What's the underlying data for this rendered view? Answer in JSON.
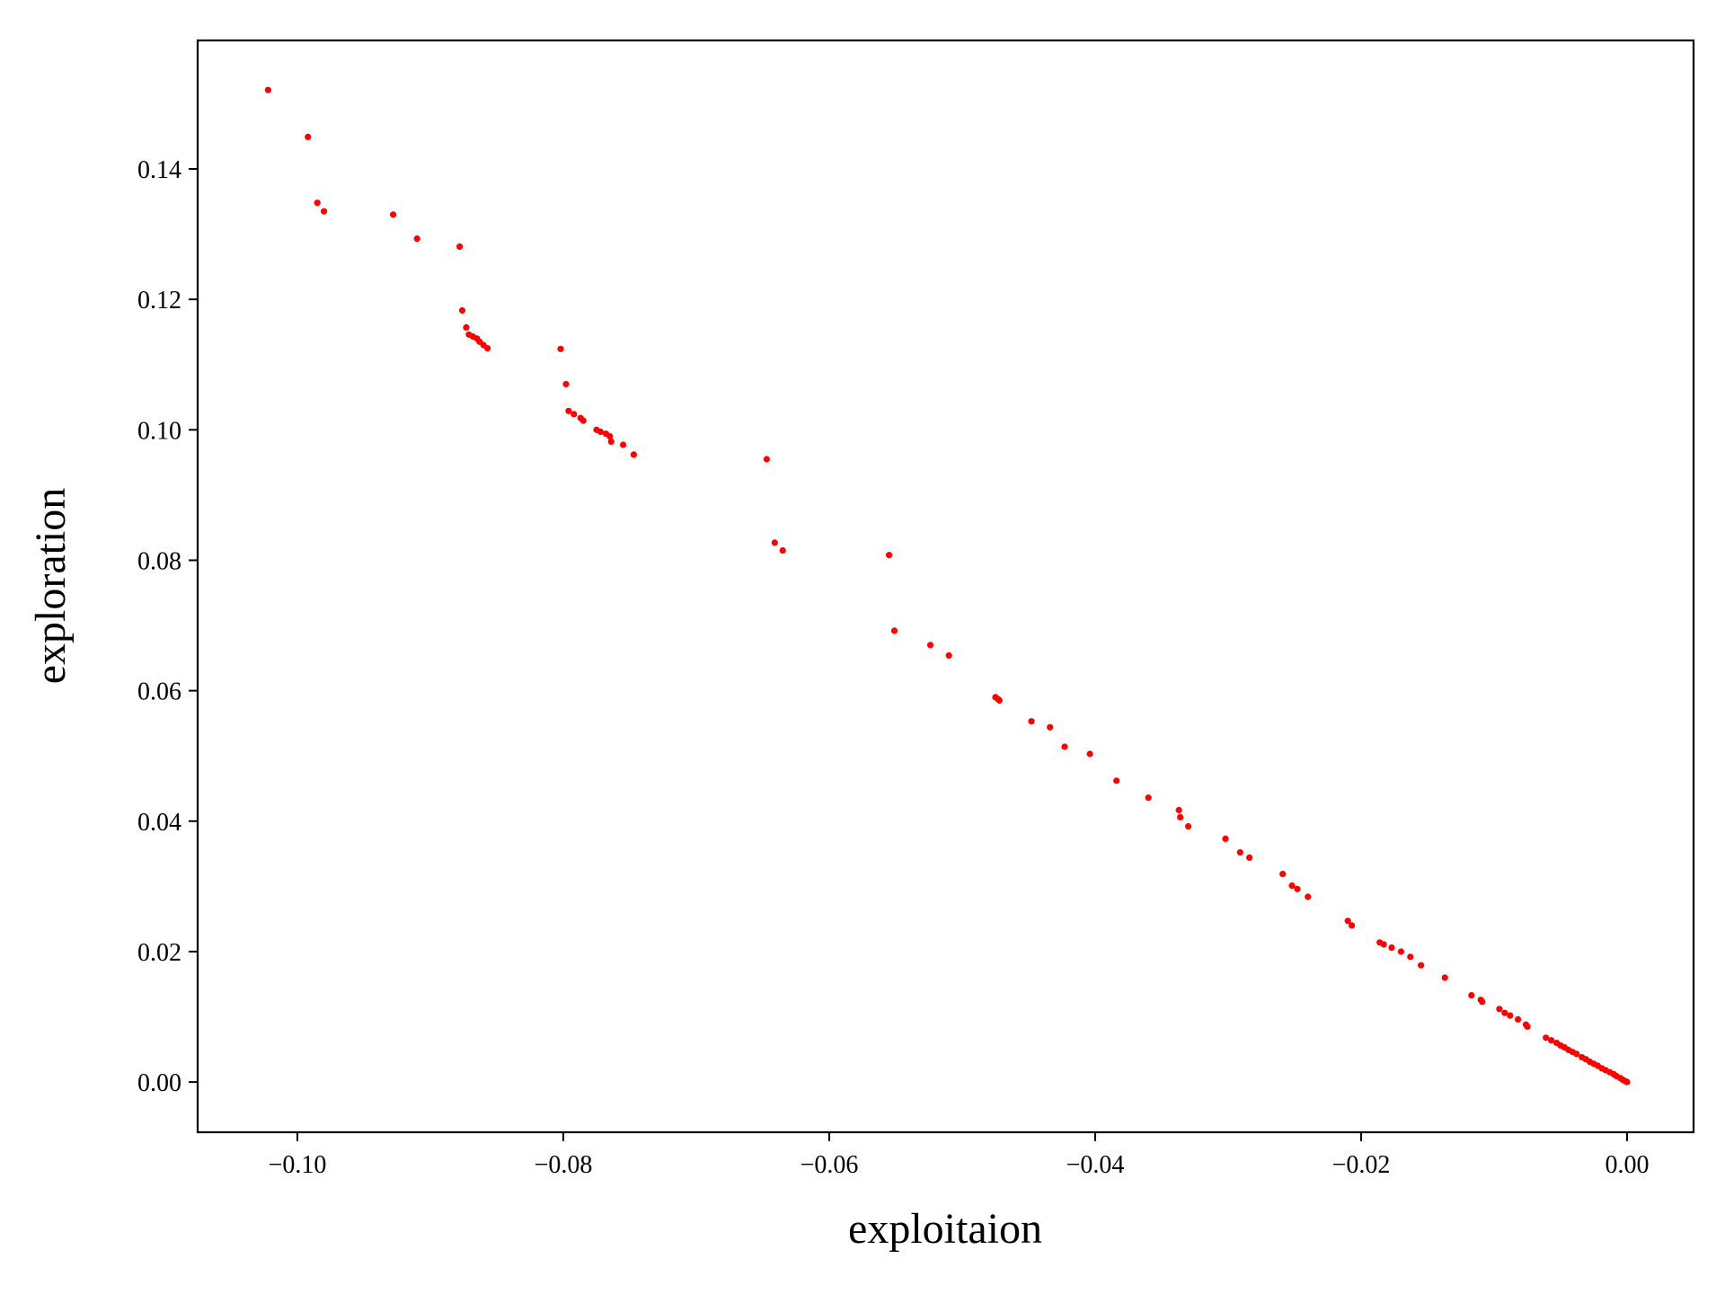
{
  "chart_data": {
    "type": "scatter",
    "title": "",
    "xlabel": "exploitaion",
    "ylabel": "exploration",
    "xlim": [
      -0.1075,
      0.005
    ],
    "ylim": [
      -0.0077,
      0.1597
    ],
    "xticks": [
      -0.1,
      -0.08,
      -0.06,
      -0.04,
      -0.02,
      0.0
    ],
    "xtick_labels": [
      "−0.10",
      "−0.08",
      "−0.06",
      "−0.04",
      "−0.02",
      "0.00"
    ],
    "yticks": [
      0.0,
      0.02,
      0.04,
      0.06,
      0.08,
      0.1,
      0.12,
      0.14
    ],
    "ytick_labels": [
      "0.00",
      "0.02",
      "0.04",
      "0.06",
      "0.08",
      "0.10",
      "0.12",
      "0.14"
    ],
    "grid": false,
    "marker_color": "#ff0000",
    "points": [
      [
        -0.1022,
        0.1521
      ],
      [
        -0.0992,
        0.1449
      ],
      [
        -0.0985,
        0.1348
      ],
      [
        -0.098,
        0.1335
      ],
      [
        -0.0928,
        0.133
      ],
      [
        -0.091,
        0.1293
      ],
      [
        -0.0878,
        0.1281
      ],
      [
        -0.0876,
        0.1183
      ],
      [
        -0.0873,
        0.1157
      ],
      [
        -0.0871,
        0.1146
      ],
      [
        -0.0868,
        0.1143
      ],
      [
        -0.0865,
        0.114
      ],
      [
        -0.0863,
        0.1135
      ],
      [
        -0.086,
        0.113
      ],
      [
        -0.0857,
        0.1125
      ],
      [
        -0.0802,
        0.1124
      ],
      [
        -0.0798,
        0.107
      ],
      [
        -0.0796,
        0.1029
      ],
      [
        -0.0792,
        0.1024
      ],
      [
        -0.0787,
        0.1018
      ],
      [
        -0.0785,
        0.1014
      ],
      [
        -0.0775,
        0.1
      ],
      [
        -0.0772,
        0.0997
      ],
      [
        -0.0768,
        0.0994
      ],
      [
        -0.0765,
        0.099
      ],
      [
        -0.0764,
        0.0982
      ],
      [
        -0.0755,
        0.0977
      ],
      [
        -0.0747,
        0.0962
      ],
      [
        -0.0647,
        0.0955
      ],
      [
        -0.0641,
        0.0827
      ],
      [
        -0.0635,
        0.0815
      ],
      [
        -0.0555,
        0.0808
      ],
      [
        -0.0551,
        0.0692
      ],
      [
        -0.0524,
        0.067
      ],
      [
        -0.051,
        0.0654
      ],
      [
        -0.0475,
        0.059
      ],
      [
        -0.0473,
        0.0587
      ],
      [
        -0.0472,
        0.0585
      ],
      [
        -0.0448,
        0.0553
      ],
      [
        -0.0434,
        0.0544
      ],
      [
        -0.0423,
        0.0514
      ],
      [
        -0.0404,
        0.0503
      ],
      [
        -0.0384,
        0.0462
      ],
      [
        -0.036,
        0.0436
      ],
      [
        -0.0337,
        0.0417
      ],
      [
        -0.0336,
        0.0406
      ],
      [
        -0.033,
        0.0392
      ],
      [
        -0.0302,
        0.0373
      ],
      [
        -0.0291,
        0.0352
      ],
      [
        -0.0284,
        0.0344
      ],
      [
        -0.0259,
        0.0319
      ],
      [
        -0.0252,
        0.0301
      ],
      [
        -0.0248,
        0.0296
      ],
      [
        -0.024,
        0.0284
      ],
      [
        -0.021,
        0.0247
      ],
      [
        -0.0207,
        0.024
      ],
      [
        -0.0186,
        0.0214
      ],
      [
        -0.0183,
        0.0211
      ],
      [
        -0.0177,
        0.0206
      ],
      [
        -0.017,
        0.02
      ],
      [
        -0.0163,
        0.0192
      ],
      [
        -0.0155,
        0.0179
      ],
      [
        -0.0137,
        0.016
      ],
      [
        -0.0117,
        0.0133
      ],
      [
        -0.011,
        0.0126
      ],
      [
        -0.0109,
        0.0123
      ],
      [
        -0.0096,
        0.0112
      ],
      [
        -0.0092,
        0.0106
      ],
      [
        -0.0088,
        0.0102
      ],
      [
        -0.0082,
        0.0096
      ],
      [
        -0.0076,
        0.0088
      ],
      [
        -0.0075,
        0.0085
      ],
      [
        -0.0061,
        0.0068
      ],
      [
        -0.0057,
        0.0064
      ],
      [
        -0.0053,
        0.006
      ],
      [
        -0.005,
        0.0056
      ],
      [
        -0.0047,
        0.0053
      ],
      [
        -0.0044,
        0.0049
      ],
      [
        -0.0041,
        0.0046
      ],
      [
        -0.0038,
        0.0043
      ],
      [
        -0.0034,
        0.0038
      ],
      [
        -0.0031,
        0.0035
      ],
      [
        -0.0028,
        0.0031
      ],
      [
        -0.0025,
        0.0028
      ],
      [
        -0.0022,
        0.0025
      ],
      [
        -0.0019,
        0.0021
      ],
      [
        -0.0016,
        0.0018
      ],
      [
        -0.0013,
        0.0015
      ],
      [
        -0.001,
        0.0012
      ],
      [
        -0.0008,
        0.0009
      ],
      [
        -0.0005,
        0.0006
      ],
      [
        -0.0003,
        0.0003
      ],
      [
        -0.0001,
        0.0001
      ],
      [
        0.0,
        0.0
      ]
    ]
  }
}
